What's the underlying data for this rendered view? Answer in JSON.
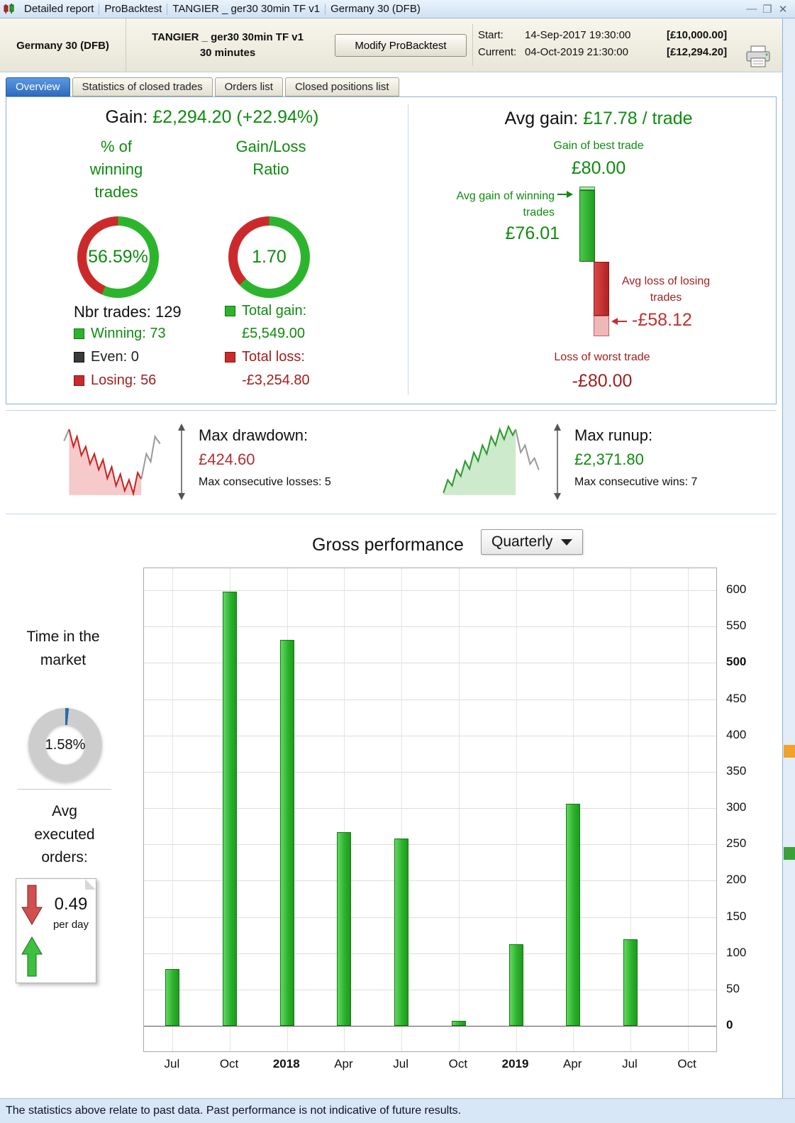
{
  "titlebar": {
    "segments": [
      "Detailed report",
      "ProBacktest",
      "TANGIER _ ger30 30min TF v1",
      "Germany 30 (DFB)"
    ],
    "minimize": "—",
    "maximize": "❐",
    "close": "✕"
  },
  "header": {
    "instrument": "Germany 30 (DFB)",
    "strategy_line1": "TANGIER _ ger30 30min TF v1",
    "strategy_line2": "30 minutes",
    "modify_button": "Modify ProBacktest",
    "start_label": "Start:",
    "start_datetime": "14-Sep-2017 19:30:00",
    "start_equity": "[£10,000.00]",
    "current_label": "Current:",
    "current_datetime": "04-Oct-2019 21:30:00",
    "current_equity": "[£12,294.20]"
  },
  "tabs": [
    {
      "label": "Overview",
      "active": true
    },
    {
      "label": "Statistics of closed trades",
      "active": false
    },
    {
      "label": "Orders list",
      "active": false
    },
    {
      "label": "Closed positions list",
      "active": false
    }
  ],
  "overview": {
    "gain_label": "Gain:",
    "gain_value": "£2,294.20 (+22.94%)",
    "winning_header": "% of winning trades",
    "ratio_header": "Gain/Loss Ratio",
    "winning_pct_text": "56.59%",
    "winning_pct": 56.59,
    "ratio_text": "1.70",
    "ratio_green_pct": 63.0,
    "nbr_trades_label": "Nbr trades:",
    "nbr_trades_value": "129",
    "legend": {
      "winning_label": "Winning:",
      "winning_value": "73",
      "even_label": "Even:",
      "even_value": "0",
      "losing_label": "Losing:",
      "losing_value": "56",
      "total_gain_label": "Total gain:",
      "total_gain_value": "£5,549.00",
      "total_loss_label": "Total loss:",
      "total_loss_value": "-£3,254.80"
    },
    "avg_gain_label": "Avg gain:",
    "avg_gain_value": "£17.78 / trade",
    "best_trade_label": "Gain of best trade",
    "best_trade_value": "£80.00",
    "avg_win_label": "Avg gain of winning trades",
    "avg_win_value": "£76.01",
    "avg_loss_label": "Avg loss of losing trades",
    "avg_loss_value": "-£58.12",
    "worst_trade_label": "Loss of worst trade",
    "worst_trade_value": "-£80.00",
    "trade_extremes": {
      "best": 80,
      "avg_win": 76.01,
      "avg_loss": 58.12,
      "worst": 80
    }
  },
  "drawdown": {
    "label": "Max drawdown:",
    "value": "£424.60",
    "consecutive": "Max consecutive losses: 5"
  },
  "runup": {
    "label": "Max runup:",
    "value": "£2,371.80",
    "consecutive": "Max consecutive wins: 7"
  },
  "performance": {
    "title": "Gross performance",
    "period_selector": "Quarterly",
    "time_in_market_label": "Time in the market",
    "time_in_market_value": "1.58%",
    "time_in_market_pct": 1.58,
    "avg_orders_label": "Avg executed orders:",
    "avg_orders_value": "0.49",
    "avg_orders_unit": "per day"
  },
  "chart_data": {
    "type": "bar",
    "title": "Gross performance",
    "period": "Quarterly",
    "categories": [
      "Jul",
      "Oct",
      "2018",
      "Apr",
      "Jul",
      "Oct",
      "2019",
      "Apr",
      "Jul",
      "Oct"
    ],
    "bold_categories": [
      "2018",
      "2019"
    ],
    "values": [
      78,
      598,
      532,
      267,
      258,
      7,
      112,
      306,
      119,
      0
    ],
    "ylabel": "",
    "xlabel": "",
    "ylim": [
      0,
      600
    ],
    "ytick_step": 50,
    "yticks": [
      600,
      550,
      500,
      450,
      400,
      350,
      300,
      250,
      200,
      150,
      100,
      50,
      0
    ],
    "bold_yticks": [
      500,
      0
    ],
    "grid": true,
    "bar_color": "#2db22d",
    "axis_side": "right"
  },
  "footer": {
    "disclaimer": "The statistics above relate to past data. Past performance is not indicative of future results."
  }
}
